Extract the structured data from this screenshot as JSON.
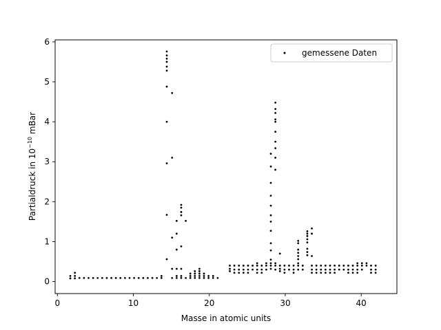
{
  "chart_data": {
    "type": "scatter",
    "xlabel": "Masse in atomic units",
    "ylabel_prefix": "Partialdruck in 10",
    "ylabel_exponent": "−10",
    "ylabel_suffix": " mBar",
    "xlim": [
      -0.3,
      44.7
    ],
    "ylim": [
      -0.3,
      6.05
    ],
    "xticks": [
      0,
      10,
      20,
      30,
      40
    ],
    "yticks": [
      0,
      1,
      2,
      3,
      4,
      5,
      6
    ],
    "grid": false,
    "legend_position": "top-right",
    "series": [
      {
        "name": "gemessene Daten",
        "color": "#000000",
        "marker": "dot",
        "points": [
          [
            1.7,
            0.08
          ],
          [
            1.7,
            0.14
          ],
          [
            2.3,
            0.08
          ],
          [
            2.3,
            0.14
          ],
          [
            2.3,
            0.22
          ],
          [
            2.9,
            0.09
          ],
          [
            3.5,
            0.09
          ],
          [
            4.1,
            0.09
          ],
          [
            4.7,
            0.09
          ],
          [
            5.3,
            0.09
          ],
          [
            5.9,
            0.09
          ],
          [
            6.5,
            0.09
          ],
          [
            7.1,
            0.09
          ],
          [
            7.7,
            0.09
          ],
          [
            8.3,
            0.09
          ],
          [
            8.9,
            0.09
          ],
          [
            9.5,
            0.09
          ],
          [
            10.1,
            0.09
          ],
          [
            10.7,
            0.09
          ],
          [
            11.3,
            0.09
          ],
          [
            11.9,
            0.09
          ],
          [
            12.5,
            0.09
          ],
          [
            13.1,
            0.09
          ],
          [
            13.7,
            0.09
          ],
          [
            13.7,
            0.14
          ],
          [
            14.4,
            0.56
          ],
          [
            14.4,
            1.67
          ],
          [
            14.4,
            2.96
          ],
          [
            14.4,
            4.0
          ],
          [
            14.4,
            4.88
          ],
          [
            14.4,
            5.28
          ],
          [
            14.4,
            5.38
          ],
          [
            14.4,
            5.5
          ],
          [
            14.4,
            5.58
          ],
          [
            14.4,
            5.66
          ],
          [
            14.4,
            5.76
          ],
          [
            15.1,
            4.72
          ],
          [
            15.1,
            3.1
          ],
          [
            15.1,
            1.1
          ],
          [
            15.1,
            0.32
          ],
          [
            15.1,
            0.09
          ],
          [
            15.7,
            0.09
          ],
          [
            15.7,
            0.14
          ],
          [
            15.7,
            0.32
          ],
          [
            15.7,
            0.8
          ],
          [
            15.7,
            1.2
          ],
          [
            15.7,
            1.52
          ],
          [
            16.3,
            0.09
          ],
          [
            16.3,
            0.14
          ],
          [
            16.3,
            0.32
          ],
          [
            16.3,
            0.88
          ],
          [
            16.3,
            1.66
          ],
          [
            16.3,
            1.74
          ],
          [
            16.3,
            1.85
          ],
          [
            16.3,
            1.92
          ],
          [
            16.9,
            0.09
          ],
          [
            16.9,
            1.52
          ],
          [
            17.5,
            0.09
          ],
          [
            17.5,
            0.14
          ],
          [
            17.5,
            0.2
          ],
          [
            18.1,
            0.09
          ],
          [
            18.1,
            0.14
          ],
          [
            18.1,
            0.2
          ],
          [
            18.1,
            0.26
          ],
          [
            18.7,
            0.09
          ],
          [
            18.7,
            0.14
          ],
          [
            18.7,
            0.2
          ],
          [
            18.7,
            0.26
          ],
          [
            18.7,
            0.32
          ],
          [
            19.3,
            0.09
          ],
          [
            19.3,
            0.14
          ],
          [
            19.3,
            0.2
          ],
          [
            19.9,
            0.09
          ],
          [
            19.9,
            0.14
          ],
          [
            20.5,
            0.09
          ],
          [
            20.5,
            0.14
          ],
          [
            21.1,
            0.09
          ],
          [
            22.7,
            0.26
          ],
          [
            22.7,
            0.32
          ],
          [
            22.7,
            0.4
          ],
          [
            23.3,
            0.22
          ],
          [
            23.3,
            0.3
          ],
          [
            23.3,
            0.4
          ],
          [
            23.9,
            0.22
          ],
          [
            23.9,
            0.3
          ],
          [
            23.9,
            0.4
          ],
          [
            24.5,
            0.22
          ],
          [
            24.5,
            0.3
          ],
          [
            24.5,
            0.4
          ],
          [
            25.1,
            0.22
          ],
          [
            25.1,
            0.3
          ],
          [
            25.1,
            0.4
          ],
          [
            25.7,
            0.3
          ],
          [
            25.7,
            0.4
          ],
          [
            26.3,
            0.22
          ],
          [
            26.3,
            0.3
          ],
          [
            26.3,
            0.4
          ],
          [
            26.3,
            0.46
          ],
          [
            26.9,
            0.22
          ],
          [
            26.9,
            0.3
          ],
          [
            26.9,
            0.4
          ],
          [
            27.5,
            0.3
          ],
          [
            27.5,
            0.4
          ],
          [
            27.5,
            0.46
          ],
          [
            28.1,
            0.32
          ],
          [
            28.1,
            0.4
          ],
          [
            28.1,
            0.46
          ],
          [
            28.1,
            0.55
          ],
          [
            28.1,
            0.78
          ],
          [
            28.1,
            0.96
          ],
          [
            28.1,
            1.27
          ],
          [
            28.1,
            1.5
          ],
          [
            28.1,
            1.66
          ],
          [
            28.1,
            1.9
          ],
          [
            28.1,
            2.15
          ],
          [
            28.1,
            2.47
          ],
          [
            28.1,
            2.88
          ],
          [
            28.1,
            3.2
          ],
          [
            28.7,
            0.3
          ],
          [
            28.7,
            0.4
          ],
          [
            28.7,
            0.46
          ],
          [
            28.7,
            2.8
          ],
          [
            28.7,
            3.1
          ],
          [
            28.7,
            3.34
          ],
          [
            28.7,
            3.5
          ],
          [
            28.7,
            3.75
          ],
          [
            28.7,
            4.0
          ],
          [
            28.7,
            4.06
          ],
          [
            28.7,
            4.22
          ],
          [
            28.7,
            4.32
          ],
          [
            28.7,
            4.48
          ],
          [
            29.3,
            0.26
          ],
          [
            29.3,
            0.32
          ],
          [
            29.3,
            0.4
          ],
          [
            29.3,
            0.7
          ],
          [
            29.9,
            0.22
          ],
          [
            29.9,
            0.3
          ],
          [
            29.9,
            0.4
          ],
          [
            30.5,
            0.3
          ],
          [
            30.5,
            0.4
          ],
          [
            31.1,
            0.22
          ],
          [
            31.1,
            0.3
          ],
          [
            31.1,
            0.4
          ],
          [
            31.7,
            0.3
          ],
          [
            31.7,
            0.4
          ],
          [
            31.7,
            0.46
          ],
          [
            31.7,
            0.56
          ],
          [
            31.7,
            0.64
          ],
          [
            31.7,
            0.72
          ],
          [
            31.7,
            0.8
          ],
          [
            31.7,
            0.96
          ],
          [
            31.7,
            1.02
          ],
          [
            32.3,
            0.3
          ],
          [
            32.3,
            0.4
          ],
          [
            32.9,
            0.66
          ],
          [
            32.9,
            0.74
          ],
          [
            32.9,
            0.82
          ],
          [
            32.9,
            0.98
          ],
          [
            32.9,
            1.06
          ],
          [
            32.9,
            1.14
          ],
          [
            32.9,
            1.2
          ],
          [
            32.9,
            1.26
          ],
          [
            33.5,
            0.22
          ],
          [
            33.5,
            0.3
          ],
          [
            33.5,
            0.4
          ],
          [
            33.5,
            0.64
          ],
          [
            33.5,
            1.2
          ],
          [
            33.5,
            1.33
          ],
          [
            34.1,
            0.22
          ],
          [
            34.1,
            0.3
          ],
          [
            34.1,
            0.4
          ],
          [
            34.7,
            0.22
          ],
          [
            34.7,
            0.3
          ],
          [
            34.7,
            0.4
          ],
          [
            35.3,
            0.22
          ],
          [
            35.3,
            0.3
          ],
          [
            35.3,
            0.4
          ],
          [
            35.9,
            0.22
          ],
          [
            35.9,
            0.3
          ],
          [
            35.9,
            0.4
          ],
          [
            36.5,
            0.22
          ],
          [
            36.5,
            0.3
          ],
          [
            36.5,
            0.4
          ],
          [
            37.1,
            0.3
          ],
          [
            37.1,
            0.4
          ],
          [
            37.7,
            0.3
          ],
          [
            37.7,
            0.4
          ],
          [
            38.3,
            0.22
          ],
          [
            38.3,
            0.3
          ],
          [
            38.3,
            0.4
          ],
          [
            38.9,
            0.22
          ],
          [
            38.9,
            0.3
          ],
          [
            38.9,
            0.4
          ],
          [
            39.5,
            0.22
          ],
          [
            39.5,
            0.3
          ],
          [
            39.5,
            0.4
          ],
          [
            39.5,
            0.46
          ],
          [
            40.1,
            0.3
          ],
          [
            40.1,
            0.4
          ],
          [
            40.1,
            0.46
          ],
          [
            40.7,
            0.4
          ],
          [
            40.7,
            0.46
          ],
          [
            41.3,
            0.22
          ],
          [
            41.3,
            0.3
          ],
          [
            41.3,
            0.4
          ],
          [
            41.9,
            0.22
          ],
          [
            41.9,
            0.3
          ],
          [
            41.9,
            0.4
          ]
        ]
      }
    ]
  }
}
